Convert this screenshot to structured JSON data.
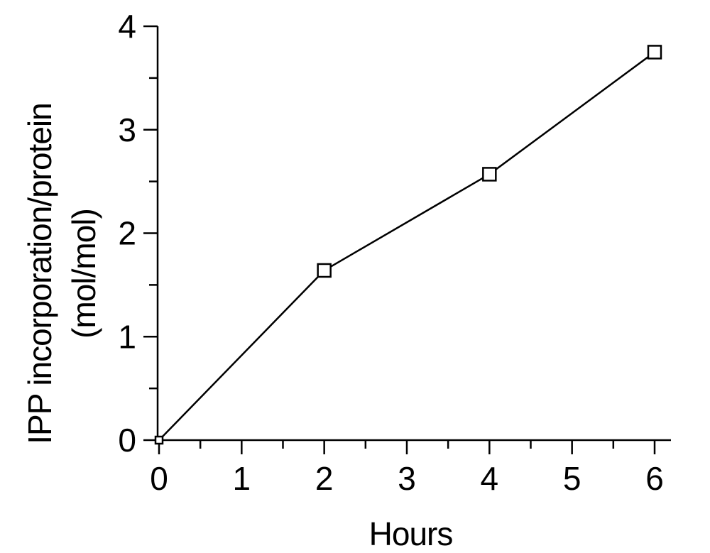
{
  "chart_data": {
    "type": "line",
    "title": "",
    "xlabel": "Hours",
    "ylabel_lines": [
      "IPP incorporation/protein",
      "(mol/mol)"
    ],
    "xlim": [
      0,
      6.2
    ],
    "ylim": [
      0,
      4
    ],
    "x_ticks": [
      0,
      1,
      2,
      3,
      4,
      5,
      6
    ],
    "y_ticks": [
      0,
      1,
      2,
      3,
      4
    ],
    "grid": false,
    "legend": "none",
    "marker": "open-square",
    "color": "#000000",
    "series": [
      {
        "x": [
          0,
          2,
          4,
          6
        ],
        "y": [
          0,
          1.64,
          2.57,
          3.75
        ]
      }
    ]
  }
}
